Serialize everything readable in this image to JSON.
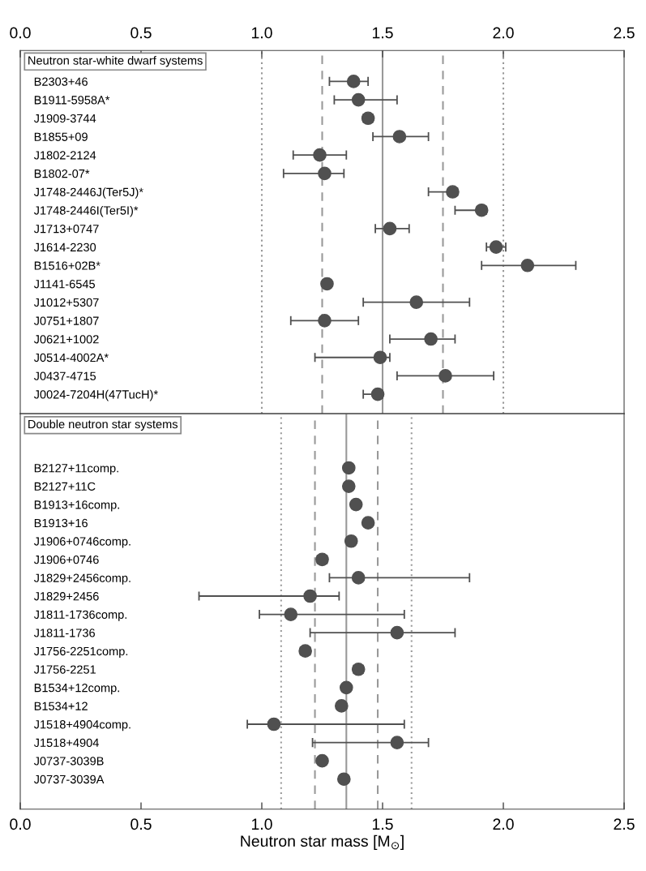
{
  "chart_data": [
    {
      "type": "scatter",
      "orientation": "horizontal",
      "title": "Neutron star-white dwarf systems",
      "marker": "circle",
      "grid": false,
      "categories": [
        "B2303+46",
        "B1911-5958A*",
        "J1909-3744",
        "B1855+09",
        "J1802-2124",
        "B1802-07*",
        "J1748-2446J(Ter5J)*",
        "J1748-2446I(Ter5I)*",
        "J1713+0747",
        "J1614-2230",
        "B1516+02B*",
        "J1141-6545",
        "J1012+5307",
        "J0751+1807",
        "J0621+1002",
        "J0514-4002A*",
        "J0437-4715",
        "J0024-7204H(47TucH)*"
      ],
      "series": [
        {
          "color": "#505050",
          "values": [
            1.38,
            1.4,
            1.44,
            1.57,
            1.24,
            1.26,
            1.79,
            1.91,
            1.53,
            1.97,
            2.1,
            1.27,
            1.64,
            1.26,
            1.7,
            1.49,
            1.76,
            1.48
          ],
          "errors": [
            [
              1.28,
              1.44
            ],
            [
              1.3,
              1.56
            ],
            [
              1.42,
              1.46
            ],
            [
              1.46,
              1.69
            ],
            [
              1.13,
              1.35
            ],
            [
              1.09,
              1.34
            ],
            [
              1.69,
              1.81
            ],
            [
              1.8,
              1.93
            ],
            [
              1.47,
              1.61
            ],
            [
              1.93,
              2.01
            ],
            [
              1.91,
              2.3
            ],
            null,
            [
              1.42,
              1.86
            ],
            [
              1.12,
              1.4
            ],
            [
              1.53,
              1.8
            ],
            [
              1.22,
              1.53
            ],
            [
              1.56,
              1.96
            ],
            [
              1.42,
              1.5
            ]
          ]
        }
      ],
      "ref_lines": [
        {
          "axis": "x",
          "value": 1.0,
          "color": "#999999",
          "line_style": "dotted"
        },
        {
          "axis": "x",
          "value": 1.25,
          "color": "#999999",
          "line_style": "dashed"
        },
        {
          "axis": "x",
          "value": 1.5,
          "color": "#999999",
          "line_style": "solid"
        },
        {
          "axis": "x",
          "value": 1.75,
          "color": "#999999",
          "line_style": "dashed"
        },
        {
          "axis": "x",
          "value": 2.0,
          "color": "#999999",
          "line_style": "dotted"
        }
      ],
      "xlim": [
        0,
        2.5
      ],
      "xticks": [
        {
          "value": 0,
          "label": "0.0"
        },
        {
          "value": 0.5,
          "label": "0.5"
        },
        {
          "value": 1.0,
          "label": "1.0"
        },
        {
          "value": 1.5,
          "label": "1.5"
        },
        {
          "value": 2.0,
          "label": "2.0"
        },
        {
          "value": 2.5,
          "label": "2.5"
        }
      ]
    },
    {
      "type": "scatter",
      "orientation": "horizontal",
      "title": "Double neutron star systems",
      "xlabel": "Neutron star mass [M$_{⊙}$]",
      "marker": "circle",
      "grid": false,
      "categories": [
        "B2127+11comp.",
        "B2127+11C",
        "B1913+16comp.",
        "B1913+16",
        "J1906+0746comp.",
        "J1906+0746",
        "J1829+2456comp.",
        "J1829+2456",
        "J1811-1736comp.",
        "J1811-1736",
        "J1756-2251comp.",
        "J1756-2251",
        "B1534+12comp.",
        "B1534+12",
        "J1518+4904comp.",
        "J1518+4904",
        "J0737-3039B",
        "J0737-3039A"
      ],
      "series": [
        {
          "color": "#505050",
          "values": [
            1.36,
            1.36,
            1.39,
            1.44,
            1.37,
            1.25,
            1.4,
            1.2,
            1.12,
            1.56,
            1.18,
            1.4,
            1.35,
            1.33,
            1.05,
            1.56,
            1.25,
            1.34
          ],
          "errors": [
            null,
            null,
            null,
            null,
            null,
            [
              1.23,
              1.27
            ],
            [
              1.28,
              1.86
            ],
            [
              0.74,
              1.32
            ],
            [
              0.99,
              1.59
            ],
            [
              1.2,
              1.8
            ],
            [
              1.16,
              1.2
            ],
            [
              1.38,
              1.42
            ],
            null,
            null,
            [
              0.94,
              1.59
            ],
            [
              1.21,
              1.69
            ],
            null,
            null
          ]
        }
      ],
      "ref_lines": [
        {
          "axis": "x",
          "value": 1.08,
          "color": "#999999",
          "line_style": "dotted"
        },
        {
          "axis": "x",
          "value": 1.22,
          "color": "#999999",
          "line_style": "dashed"
        },
        {
          "axis": "x",
          "value": 1.35,
          "color": "#999999",
          "line_style": "solid"
        },
        {
          "axis": "x",
          "value": 1.48,
          "color": "#999999",
          "line_style": "dashed"
        },
        {
          "axis": "x",
          "value": 1.62,
          "color": "#999999",
          "line_style": "dotted"
        }
      ],
      "xlim": [
        0,
        2.5
      ],
      "xticks": [
        {
          "value": 0,
          "label": "0.0"
        },
        {
          "value": 0.5,
          "label": "0.5"
        },
        {
          "value": 1.0,
          "label": "1.0"
        },
        {
          "value": 1.5,
          "label": "1.5"
        },
        {
          "value": 2.0,
          "label": "2.0"
        },
        {
          "value": 2.5,
          "label": "2.5"
        }
      ]
    }
  ]
}
